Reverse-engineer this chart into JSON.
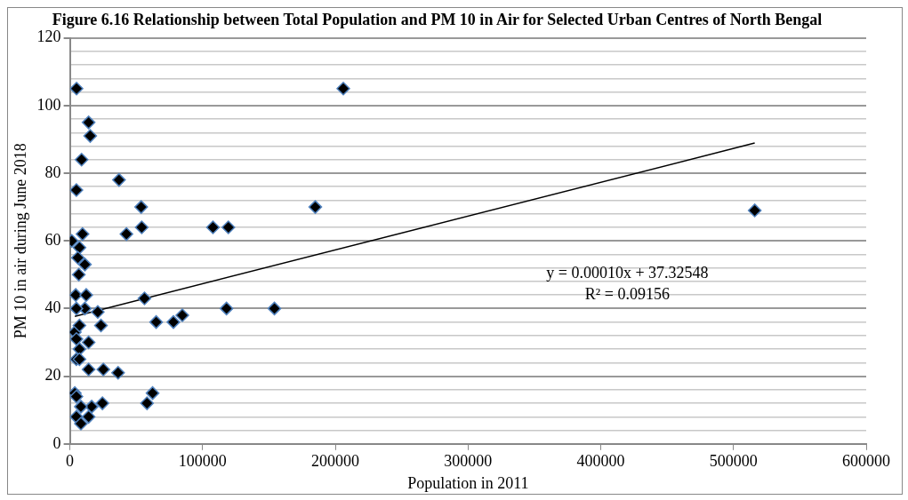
{
  "chart_data": {
    "type": "scatter",
    "title": "Figure 6.16 Relationship between Total Population and PM 10 in Air for Selected Urban Centres of North Bengal",
    "xlabel": "Population in 2011",
    "ylabel": "PM 10 in air during June 2018",
    "xlim": [
      0,
      600000
    ],
    "xticks": [
      0,
      100000,
      200000,
      300000,
      400000,
      500000,
      600000
    ],
    "ylim": [
      0,
      120
    ],
    "yticks": [
      0,
      {
        "value": 4,
        "label": null
      },
      {
        "value": 8,
        "label": null
      },
      {
        "value": 12,
        "label": null
      },
      {
        "value": 16,
        "label": null
      },
      20,
      {
        "value": 24,
        "label": null
      },
      {
        "value": 28,
        "label": null
      },
      {
        "value": 32,
        "label": null
      },
      {
        "value": 36,
        "label": null
      },
      40,
      {
        "value": 44,
        "label": null
      },
      {
        "value": 48,
        "label": null
      },
      {
        "value": 52,
        "label": null
      },
      {
        "value": 56,
        "label": null
      },
      60,
      {
        "value": 64,
        "label": null
      },
      {
        "value": 68,
        "label": null
      },
      {
        "value": 72,
        "label": null
      },
      {
        "value": 76,
        "label": null
      },
      80,
      {
        "value": 84,
        "label": null
      },
      {
        "value": 88,
        "label": null
      },
      {
        "value": 92,
        "label": null
      },
      {
        "value": 96,
        "label": null
      },
      100,
      {
        "value": 104,
        "label": null
      },
      {
        "value": 108,
        "label": null
      },
      {
        "value": 112,
        "label": null
      },
      {
        "value": 116,
        "label": null
      },
      120
    ],
    "grid": "y",
    "legend": false,
    "marker": "diamond",
    "annotations": [
      "y = 0.00010x + 37.32548",
      "R² = 0.09156"
    ],
    "series": [
      {
        "type": "scatter",
        "color": "#000000",
        "x": [
          5000,
          206000,
          14100,
          15300,
          8800,
          37000,
          4900,
          53700,
          54100,
          42600,
          107800,
          9500,
          7200,
          1400,
          6000,
          11300,
          6700,
          4400,
          12300,
          11300,
          4900,
          56200,
          21000,
          23400,
          65000,
          78000,
          84700,
          118000,
          3700,
          7200,
          14100,
          4900,
          7200,
          4900,
          7200,
          14100,
          25200,
          36300,
          3700,
          4900,
          62300,
          58100,
          24500,
          16400,
          8300,
          4900,
          14100,
          8300,
          516000,
          184900,
          119400,
          154100
        ],
        "values": [
          105,
          105,
          95,
          91,
          84,
          78,
          75,
          70,
          64,
          62,
          64,
          62,
          58,
          60,
          55,
          53,
          50,
          44,
          44,
          40,
          40,
          43,
          39,
          35,
          36,
          36,
          38,
          40,
          33,
          35,
          30,
          31,
          28,
          25,
          25,
          22,
          22,
          21,
          15,
          14,
          15,
          12,
          12,
          11,
          11,
          8,
          8,
          6,
          69,
          70,
          64,
          40
        ]
      },
      {
        "type": "line",
        "color": "#000000",
        "marker": "none",
        "line_style": "solid",
        "x": [
          3700,
          516000
        ],
        "values": [
          37.7,
          88.9
        ]
      }
    ]
  }
}
